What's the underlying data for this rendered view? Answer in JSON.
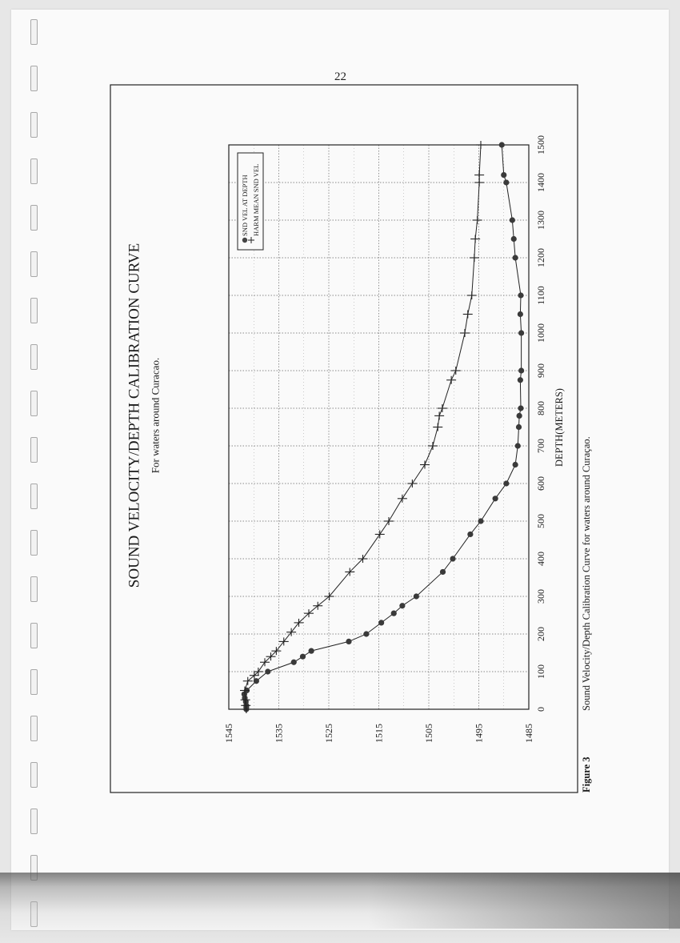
{
  "page": {
    "number": "22"
  },
  "figure": {
    "label": "Figure 3",
    "caption": "Sound Velocity/Depth Calibration Curve for waters around Curaçao."
  },
  "chart_data": {
    "type": "line",
    "title": "SOUND VELOCITY/DEPTH CALIBRATION CURVE",
    "subtitle": "For waters around Curacao.",
    "xlabel": "DEPTH(METERS)",
    "ylabel": "",
    "orientation": "rotated-90-ccw",
    "xlim": [
      0,
      1500
    ],
    "ylim": [
      1485,
      1545
    ],
    "x_ticks": [
      "0",
      "100",
      "200",
      "300",
      "400",
      "500",
      "600",
      "700",
      "800",
      "900",
      "1000",
      "1100",
      "1200",
      "1300",
      "1400",
      "1500"
    ],
    "y_ticks": [
      "1485",
      "1495",
      "1505",
      "1515",
      "1525",
      "1535",
      "1545"
    ],
    "grid": true,
    "legend_position": "top-left",
    "series": [
      {
        "name": "SND VEL AT DEPTH",
        "marker": "circle",
        "x": [
          0,
          5,
          10,
          20,
          30,
          40,
          50,
          75,
          100,
          125,
          140,
          155,
          180,
          200,
          230,
          255,
          275,
          300,
          365,
          400,
          465,
          500,
          560,
          600,
          650,
          700,
          750,
          780,
          800,
          875,
          900,
          1000,
          1050,
          1100,
          1200,
          1250,
          1300,
          1400,
          1420,
          1500
        ],
        "y": [
          1541.5,
          1541.5,
          1541.5,
          1541.6,
          1541.8,
          1541.9,
          1541.4,
          1539.5,
          1537.2,
          1532.0,
          1530.2,
          1528.5,
          1521.0,
          1517.5,
          1514.5,
          1512.0,
          1510.3,
          1507.5,
          1502.2,
          1500.2,
          1496.7,
          1494.6,
          1491.7,
          1489.5,
          1487.7,
          1487.2,
          1487.0,
          1486.9,
          1486.6,
          1486.7,
          1486.5,
          1486.5,
          1486.7,
          1486.6,
          1487.7,
          1488.0,
          1488.3,
          1489.5,
          1490.0,
          1490.4
        ]
      },
      {
        "name": "HARM MEAN SND VEL",
        "marker": "plus",
        "x": [
          0,
          10,
          25,
          50,
          75,
          90,
          100,
          125,
          140,
          155,
          180,
          205,
          230,
          255,
          275,
          300,
          365,
          400,
          465,
          500,
          560,
          600,
          650,
          700,
          750,
          780,
          800,
          875,
          900,
          1000,
          1050,
          1100,
          1200,
          1250,
          1300,
          1400,
          1420,
          1500
        ],
        "y": [
          1541.5,
          1541.6,
          1541.7,
          1541.8,
          1541.2,
          1539.9,
          1539.1,
          1537.8,
          1536.6,
          1535.5,
          1534.0,
          1532.5,
          1531.0,
          1529.0,
          1527.2,
          1524.9,
          1520.8,
          1518.2,
          1514.8,
          1513.0,
          1510.3,
          1508.3,
          1505.8,
          1504.2,
          1503.2,
          1502.9,
          1502.3,
          1500.5,
          1499.6,
          1497.8,
          1497.2,
          1496.4,
          1495.9,
          1495.7,
          1495.3,
          1494.9,
          1494.9,
          1494.6
        ]
      }
    ]
  }
}
